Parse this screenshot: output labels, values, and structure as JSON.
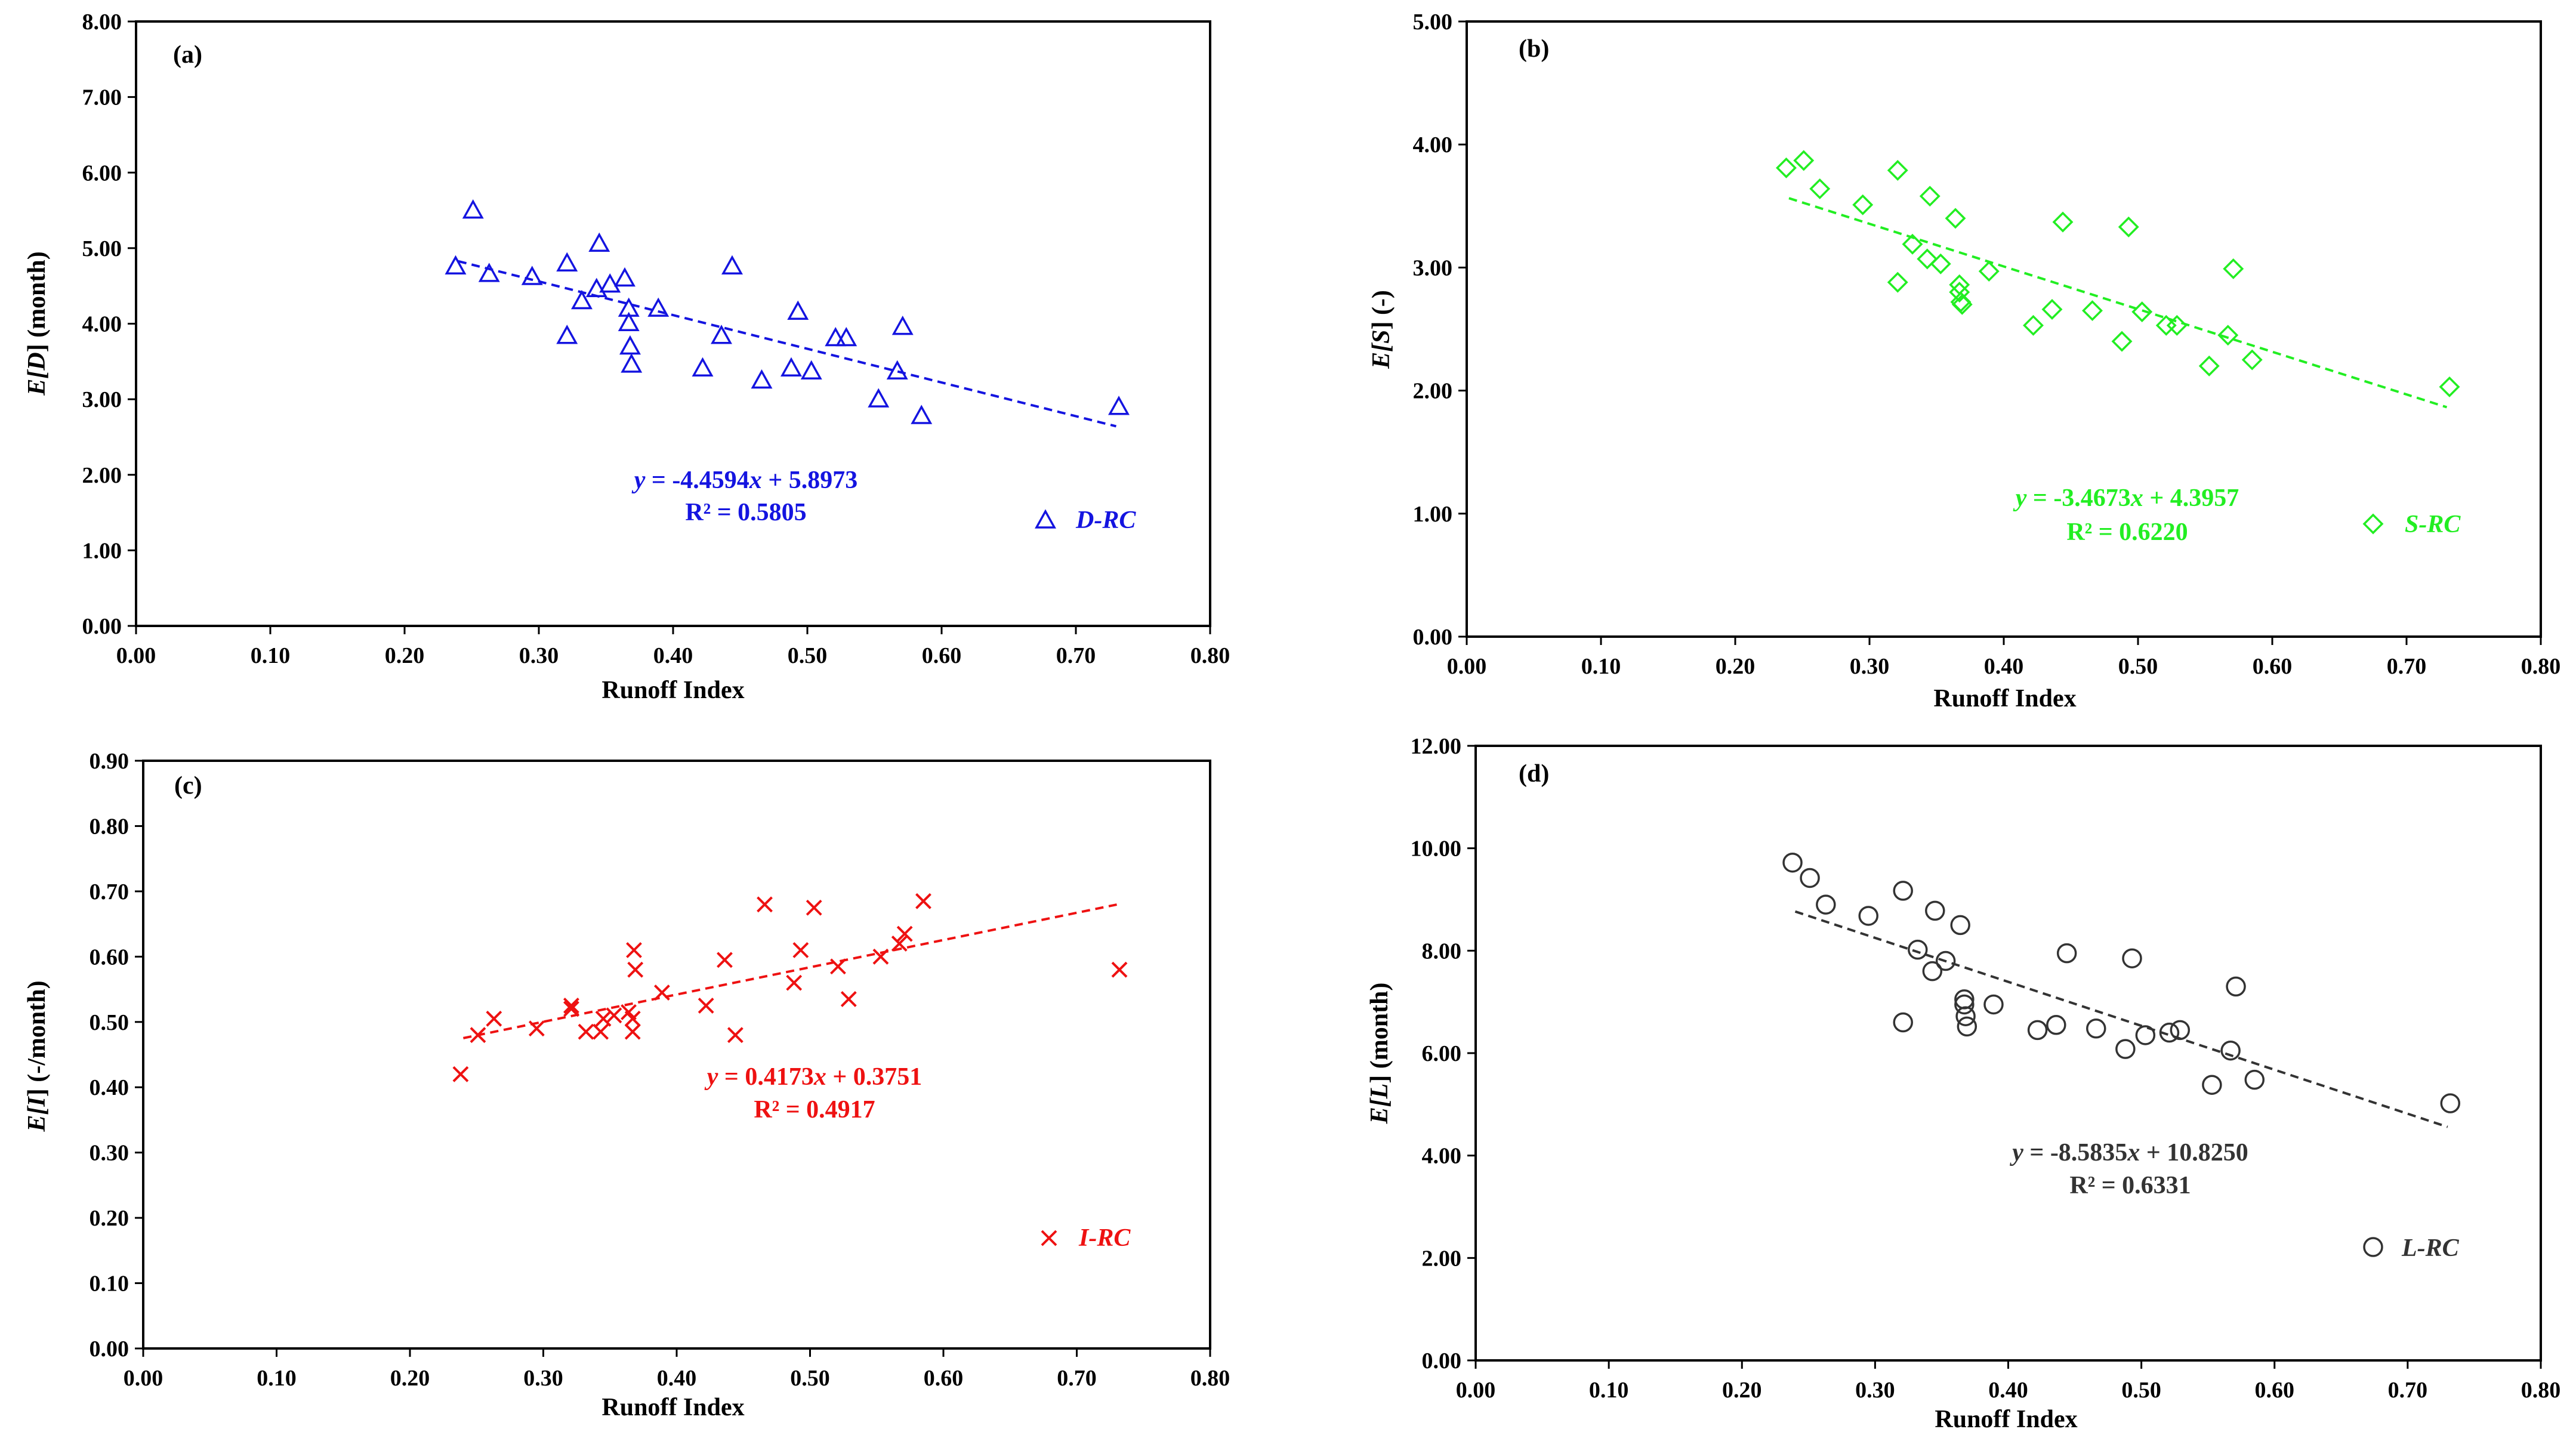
{
  "chart_data": [
    {
      "type": "scatter",
      "panel_label": "(a)",
      "xlabel": "Runoff Index",
      "ylabel": {
        "prefix": "E[",
        "var": "D",
        "suffix": "] (month)"
      },
      "xlim": [
        0,
        0.8
      ],
      "ylim": [
        0,
        8
      ],
      "x_ticks": [
        "0.00",
        "0.10",
        "0.20",
        "0.30",
        "0.40",
        "0.50",
        "0.60",
        "0.70",
        "0.80"
      ],
      "y_ticks": [
        "0.00",
        "1.00",
        "2.00",
        "3.00",
        "4.00",
        "5.00",
        "6.00",
        "7.00",
        "8.00"
      ],
      "color": "#1414e0",
      "marker": "triangle",
      "legend": "D-RC",
      "equation": {
        "y": "y",
        "mid": " = -4.4594",
        "x": "x",
        "rest": " + 5.8973"
      },
      "r2_text": "R² = 0.5805",
      "fit": {
        "slope": -4.4594,
        "intercept": 5.8973,
        "x_range": [
          0.24,
          0.73
        ]
      },
      "points": [
        [
          0.238,
          4.76
        ],
        [
          0.251,
          5.5
        ],
        [
          0.263,
          4.66
        ],
        [
          0.295,
          4.62
        ],
        [
          0.321,
          4.8
        ],
        [
          0.321,
          3.84
        ],
        [
          0.332,
          4.3
        ],
        [
          0.343,
          4.46
        ],
        [
          0.345,
          5.06
        ],
        [
          0.353,
          4.52
        ],
        [
          0.364,
          4.6
        ],
        [
          0.367,
          4.2
        ],
        [
          0.367,
          4.01
        ],
        [
          0.368,
          3.7
        ],
        [
          0.369,
          3.46
        ],
        [
          0.389,
          4.2
        ],
        [
          0.422,
          3.41
        ],
        [
          0.436,
          3.84
        ],
        [
          0.444,
          4.76
        ],
        [
          0.466,
          3.25
        ],
        [
          0.488,
          3.41
        ],
        [
          0.493,
          4.16
        ],
        [
          0.503,
          3.37
        ],
        [
          0.521,
          3.81
        ],
        [
          0.529,
          3.81
        ],
        [
          0.553,
          3.0
        ],
        [
          0.567,
          3.37
        ],
        [
          0.571,
          3.96
        ],
        [
          0.585,
          2.78
        ],
        [
          0.732,
          2.9
        ]
      ]
    },
    {
      "type": "scatter",
      "panel_label": "(b)",
      "xlabel": "Runoff Index",
      "ylabel": {
        "prefix": "E[",
        "var": "S",
        "suffix": "] (-)"
      },
      "xlim": [
        0,
        0.8
      ],
      "ylim": [
        0,
        5
      ],
      "x_ticks": [
        "0.00",
        "0.10",
        "0.20",
        "0.30",
        "0.40",
        "0.50",
        "0.60",
        "0.70",
        "0.80"
      ],
      "y_ticks": [
        "0.00",
        "1.00",
        "2.00",
        "3.00",
        "4.00",
        "5.00"
      ],
      "color": "#22ee22",
      "marker": "diamond",
      "legend": "S-RC",
      "equation": {
        "y": "y",
        "mid": " = -3.4673",
        "x": "x",
        "rest": " + 4.3957"
      },
      "r2_text": "R² = 0.6220",
      "fit": {
        "slope": -3.4673,
        "intercept": 4.3957,
        "x_range": [
          0.24,
          0.73
        ]
      },
      "points": [
        [
          0.238,
          3.81
        ],
        [
          0.251,
          3.87
        ],
        [
          0.263,
          3.64
        ],
        [
          0.295,
          3.51
        ],
        [
          0.321,
          3.79
        ],
        [
          0.321,
          2.88
        ],
        [
          0.332,
          3.19
        ],
        [
          0.343,
          3.07
        ],
        [
          0.345,
          3.58
        ],
        [
          0.353,
          3.03
        ],
        [
          0.364,
          3.4
        ],
        [
          0.367,
          2.86
        ],
        [
          0.367,
          2.8
        ],
        [
          0.368,
          2.72
        ],
        [
          0.369,
          2.7
        ],
        [
          0.389,
          2.97
        ],
        [
          0.422,
          2.53
        ],
        [
          0.436,
          2.66
        ],
        [
          0.444,
          3.37
        ],
        [
          0.466,
          2.65
        ],
        [
          0.488,
          2.4
        ],
        [
          0.493,
          3.33
        ],
        [
          0.503,
          2.64
        ],
        [
          0.521,
          2.53
        ],
        [
          0.529,
          2.53
        ],
        [
          0.553,
          2.2
        ],
        [
          0.567,
          2.45
        ],
        [
          0.571,
          2.99
        ],
        [
          0.585,
          2.25
        ],
        [
          0.732,
          2.03
        ]
      ]
    },
    {
      "type": "scatter",
      "panel_label": "(c)",
      "xlabel": "Runoff Index",
      "ylabel": {
        "prefix": "E[",
        "var": "I",
        "suffix": "] (-/month)"
      },
      "xlim": [
        0,
        0.8
      ],
      "ylim": [
        0,
        0.9
      ],
      "x_ticks": [
        "0.00",
        "0.10",
        "0.20",
        "0.30",
        "0.40",
        "0.50",
        "0.60",
        "0.70",
        "0.80"
      ],
      "y_ticks": [
        "0.00",
        "0.10",
        "0.20",
        "0.30",
        "0.40",
        "0.50",
        "0.60",
        "0.70",
        "0.80",
        "0.90"
      ],
      "color": "#ee1111",
      "marker": "cross",
      "legend": "I-RC",
      "equation": {
        "y": "y",
        "mid": " = 0.4173",
        "x": "x",
        "rest": " + 0.3751"
      },
      "r2_text": "R² = 0.4917",
      "fit": {
        "slope": 0.4173,
        "intercept": 0.3751,
        "x_range": [
          0.24,
          0.73
        ]
      },
      "points": [
        [
          0.238,
          0.42
        ],
        [
          0.251,
          0.48
        ],
        [
          0.263,
          0.505
        ],
        [
          0.295,
          0.49
        ],
        [
          0.321,
          0.525
        ],
        [
          0.321,
          0.52
        ],
        [
          0.332,
          0.485
        ],
        [
          0.343,
          0.485
        ],
        [
          0.345,
          0.505
        ],
        [
          0.353,
          0.51
        ],
        [
          0.364,
          0.515
        ],
        [
          0.367,
          0.485
        ],
        [
          0.367,
          0.505
        ],
        [
          0.368,
          0.61
        ],
        [
          0.369,
          0.58
        ],
        [
          0.389,
          0.545
        ],
        [
          0.422,
          0.525
        ],
        [
          0.436,
          0.595
        ],
        [
          0.444,
          0.48
        ],
        [
          0.466,
          0.68
        ],
        [
          0.488,
          0.56
        ],
        [
          0.493,
          0.61
        ],
        [
          0.503,
          0.675
        ],
        [
          0.521,
          0.585
        ],
        [
          0.529,
          0.535
        ],
        [
          0.553,
          0.6
        ],
        [
          0.567,
          0.62
        ],
        [
          0.571,
          0.635
        ],
        [
          0.585,
          0.685
        ],
        [
          0.732,
          0.58
        ]
      ]
    },
    {
      "type": "scatter",
      "panel_label": "(d)",
      "xlabel": "Runoff Index",
      "ylabel": {
        "prefix": "E[",
        "var": "L",
        "suffix": "] (month)"
      },
      "xlim": [
        0,
        0.8
      ],
      "ylim": [
        0,
        12
      ],
      "x_ticks": [
        "0.00",
        "0.10",
        "0.20",
        "0.30",
        "0.40",
        "0.50",
        "0.60",
        "0.70",
        "0.80"
      ],
      "y_ticks": [
        "0.00",
        "2.00",
        "4.00",
        "6.00",
        "8.00",
        "10.00",
        "12.00"
      ],
      "color": "#333333",
      "marker": "circle",
      "legend": "L-RC",
      "equation": {
        "y": "y",
        "mid": " = -8.5835",
        "x": "x",
        "rest": " + 10.8250"
      },
      "r2_text": "R² = 0.6331",
      "fit": {
        "slope": -8.5835,
        "intercept": 10.825,
        "x_range": [
          0.24,
          0.73
        ]
      },
      "points": [
        [
          0.238,
          9.72
        ],
        [
          0.251,
          9.42
        ],
        [
          0.263,
          8.9
        ],
        [
          0.295,
          8.68
        ],
        [
          0.321,
          9.17
        ],
        [
          0.321,
          6.6
        ],
        [
          0.332,
          8.02
        ],
        [
          0.343,
          7.6
        ],
        [
          0.345,
          8.78
        ],
        [
          0.353,
          7.8
        ],
        [
          0.364,
          8.5
        ],
        [
          0.367,
          7.05
        ],
        [
          0.367,
          6.95
        ],
        [
          0.368,
          6.72
        ],
        [
          0.369,
          6.52
        ],
        [
          0.389,
          6.95
        ],
        [
          0.422,
          6.45
        ],
        [
          0.436,
          6.55
        ],
        [
          0.444,
          7.95
        ],
        [
          0.466,
          6.48
        ],
        [
          0.488,
          6.08
        ],
        [
          0.493,
          7.85
        ],
        [
          0.503,
          6.35
        ],
        [
          0.521,
          6.4
        ],
        [
          0.529,
          6.45
        ],
        [
          0.553,
          5.38
        ],
        [
          0.567,
          6.05
        ],
        [
          0.571,
          7.3
        ],
        [
          0.585,
          5.48
        ],
        [
          0.732,
          5.02
        ]
      ]
    }
  ]
}
